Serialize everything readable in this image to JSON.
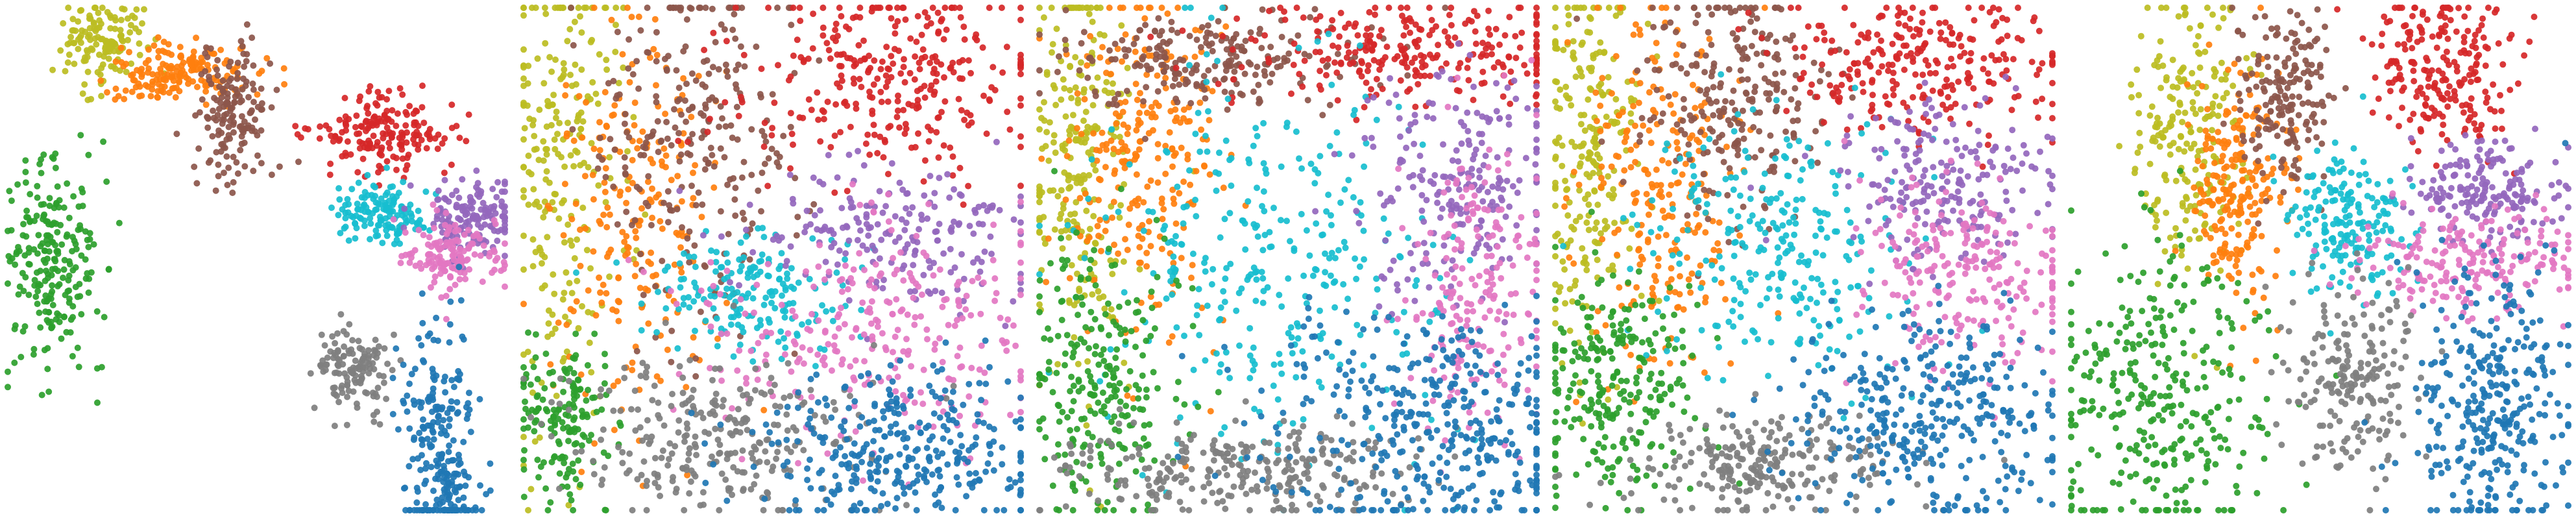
{
  "colors": {
    "c0": "#bcbd22",
    "c1": "#ff7f0e",
    "c2": "#8c564b",
    "c3": "#d62728",
    "c4": "#17becf",
    "c5": "#9467bd",
    "c6": "#e377c2",
    "c7": "#2ca02c",
    "c8": "#7f7f7f",
    "c9": "#1f77b4"
  },
  "chart_data": [
    {
      "type": "scatter",
      "title": "",
      "xlabel": "",
      "ylabel": "",
      "grid": false,
      "legend": "none",
      "xlim": [
        0,
        100
      ],
      "ylim": [
        0,
        100
      ],
      "point_clusters": [
        {
          "color": "c0",
          "center": [
            19,
            93
          ],
          "spread": [
            4,
            4
          ],
          "count": 140
        },
        {
          "color": "c1",
          "center": [
            34,
            87
          ],
          "spread": [
            7,
            3
          ],
          "count": 170
        },
        {
          "color": "c2",
          "center": [
            46,
            79
          ],
          "spread": [
            4,
            7
          ],
          "count": 160
        },
        {
          "color": "c3",
          "center": [
            75,
            75
          ],
          "spread": [
            7,
            4
          ],
          "count": 180
        },
        {
          "color": "c4",
          "center": [
            76,
            59
          ],
          "spread": [
            5,
            3
          ],
          "count": 140
        },
        {
          "color": "c5",
          "center": [
            94,
            58
          ],
          "spread": [
            5,
            4
          ],
          "count": 150
        },
        {
          "color": "c6",
          "center": [
            89,
            51
          ],
          "spread": [
            5,
            4
          ],
          "count": 140
        },
        {
          "color": "c7",
          "center": [
            9,
            49
          ],
          "spread": [
            5,
            10
          ],
          "count": 230
        },
        {
          "color": "c8",
          "center": [
            69,
            28
          ],
          "spread": [
            4,
            4
          ],
          "count": 130
        },
        {
          "color": "c9",
          "center": [
            87,
            12
          ],
          "spread": [
            4,
            12
          ],
          "count": 260
        }
      ]
    },
    {
      "type": "scatter",
      "title": "",
      "xlabel": "",
      "ylabel": "",
      "grid": false,
      "legend": "none",
      "xlim": [
        0,
        100
      ],
      "ylim": [
        0,
        100
      ],
      "point_clusters": [
        {
          "color": "c0",
          "center": [
            8,
            70
          ],
          "spread": [
            6,
            25
          ],
          "count": 230
        },
        {
          "color": "c1",
          "center": [
            22,
            58
          ],
          "spread": [
            8,
            20
          ],
          "count": 220
        },
        {
          "color": "c2",
          "center": [
            35,
            75
          ],
          "spread": [
            10,
            18
          ],
          "count": 260
        },
        {
          "color": "c3",
          "center": [
            73,
            85
          ],
          "spread": [
            16,
            10
          ],
          "count": 300
        },
        {
          "color": "c4",
          "center": [
            45,
            44
          ],
          "spread": [
            10,
            6
          ],
          "count": 180
        },
        {
          "color": "c5",
          "center": [
            75,
            55
          ],
          "spread": [
            13,
            7
          ],
          "count": 200
        },
        {
          "color": "c6",
          "center": [
            70,
            35
          ],
          "spread": [
            18,
            11
          ],
          "count": 280
        },
        {
          "color": "c7",
          "center": [
            8,
            18
          ],
          "spread": [
            5,
            8
          ],
          "count": 160
        },
        {
          "color": "c8",
          "center": [
            38,
            15
          ],
          "spread": [
            16,
            8
          ],
          "count": 280
        },
        {
          "color": "c9",
          "center": [
            76,
            12
          ],
          "spread": [
            15,
            8
          ],
          "count": 320
        }
      ]
    },
    {
      "type": "scatter",
      "title": "",
      "xlabel": "",
      "ylabel": "",
      "grid": false,
      "legend": "none",
      "xlim": [
        0,
        100
      ],
      "ylim": [
        0,
        100
      ],
      "point_clusters": [
        {
          "color": "c0",
          "center": [
            8,
            70
          ],
          "spread": [
            5,
            20
          ],
          "count": 240
        },
        {
          "color": "c1",
          "center": [
            22,
            70
          ],
          "spread": [
            8,
            18
          ],
          "count": 250
        },
        {
          "color": "c2",
          "center": [
            35,
            90
          ],
          "spread": [
            16,
            5
          ],
          "count": 220
        },
        {
          "color": "c3",
          "center": [
            75,
            91
          ],
          "spread": [
            18,
            5
          ],
          "count": 260
        },
        {
          "color": "c4",
          "center": [
            48,
            50
          ],
          "spread": [
            18,
            18
          ],
          "count": 320
        },
        {
          "color": "c5",
          "center": [
            84,
            65
          ],
          "spread": [
            10,
            12
          ],
          "count": 220
        },
        {
          "color": "c6",
          "center": [
            88,
            45
          ],
          "spread": [
            7,
            15
          ],
          "count": 200
        },
        {
          "color": "c7",
          "center": [
            12,
            25
          ],
          "spread": [
            8,
            13
          ],
          "count": 240
        },
        {
          "color": "c8",
          "center": [
            40,
            8
          ],
          "spread": [
            18,
            5
          ],
          "count": 280
        },
        {
          "color": "c9",
          "center": [
            80,
            16
          ],
          "spread": [
            17,
            11
          ],
          "count": 380
        }
      ]
    },
    {
      "type": "scatter",
      "title": "",
      "xlabel": "",
      "ylabel": "",
      "grid": false,
      "legend": "none",
      "xlim": [
        0,
        100
      ],
      "ylim": [
        0,
        100
      ],
      "point_clusters": [
        {
          "color": "c0",
          "center": [
            7,
            70
          ],
          "spread": [
            5,
            20
          ],
          "count": 230
        },
        {
          "color": "c1",
          "center": [
            21,
            64
          ],
          "spread": [
            8,
            18
          ],
          "count": 240
        },
        {
          "color": "c2",
          "center": [
            36,
            82
          ],
          "spread": [
            10,
            12
          ],
          "count": 240
        },
        {
          "color": "c3",
          "center": [
            74,
            89
          ],
          "spread": [
            14,
            7
          ],
          "count": 260
        },
        {
          "color": "c4",
          "center": [
            46,
            52
          ],
          "spread": [
            14,
            14
          ],
          "count": 260
        },
        {
          "color": "c5",
          "center": [
            78,
            66
          ],
          "spread": [
            11,
            8
          ],
          "count": 210
        },
        {
          "color": "c6",
          "center": [
            82,
            47
          ],
          "spread": [
            12,
            10
          ],
          "count": 220
        },
        {
          "color": "c7",
          "center": [
            12,
            25
          ],
          "spread": [
            8,
            12
          ],
          "count": 250
        },
        {
          "color": "c8",
          "center": [
            42,
            9
          ],
          "spread": [
            14,
            5
          ],
          "count": 240
        },
        {
          "color": "c9",
          "center": [
            75,
            18
          ],
          "spread": [
            15,
            10
          ],
          "count": 340
        }
      ]
    },
    {
      "type": "scatter",
      "title": "",
      "xlabel": "",
      "ylabel": "",
      "grid": false,
      "legend": "none",
      "xlim": [
        0,
        100
      ],
      "ylim": [
        0,
        100
      ],
      "point_clusters": [
        {
          "color": "c0",
          "center": [
            24,
            74
          ],
          "spread": [
            6,
            14
          ],
          "count": 220
        },
        {
          "color": "c1",
          "center": [
            33,
            63
          ],
          "spread": [
            5,
            12
          ],
          "count": 220
        },
        {
          "color": "c2",
          "center": [
            43,
            82
          ],
          "spread": [
            5,
            9
          ],
          "count": 180
        },
        {
          "color": "c3",
          "center": [
            75,
            88
          ],
          "spread": [
            7,
            8
          ],
          "count": 220
        },
        {
          "color": "c4",
          "center": [
            56,
            57
          ],
          "spread": [
            6,
            7
          ],
          "count": 180
        },
        {
          "color": "c5",
          "center": [
            84,
            63
          ],
          "spread": [
            7,
            5
          ],
          "count": 180
        },
        {
          "color": "c6",
          "center": [
            80,
            49
          ],
          "spread": [
            11,
            5
          ],
          "count": 200
        },
        {
          "color": "c7",
          "center": [
            18,
            22
          ],
          "spread": [
            11,
            16
          ],
          "count": 320
        },
        {
          "color": "c8",
          "center": [
            57,
            26
          ],
          "spread": [
            7,
            10
          ],
          "count": 200
        },
        {
          "color": "c9",
          "center": [
            85,
            20
          ],
          "spread": [
            8,
            14
          ],
          "count": 320
        }
      ]
    }
  ]
}
